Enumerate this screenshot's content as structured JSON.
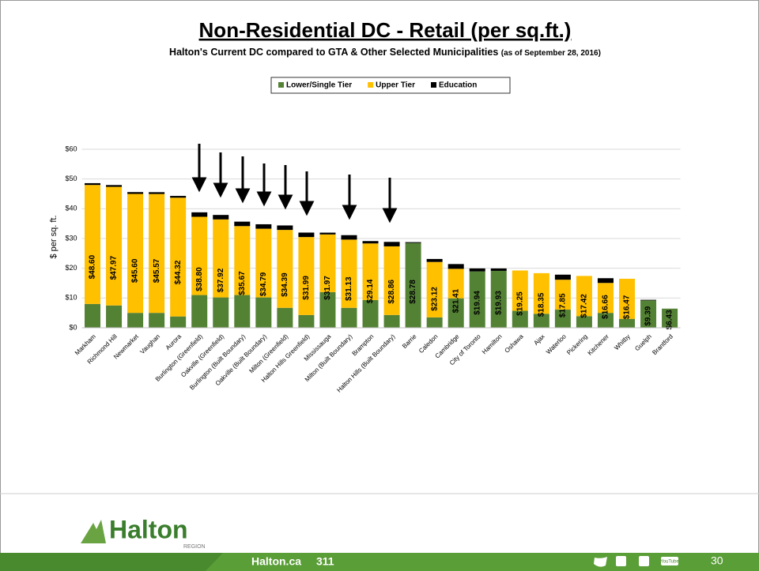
{
  "chart_data": {
    "type": "stacked_bar",
    "title": "Non-Residential DC - Retail (per sq.ft.)",
    "subtitle": "Halton's Current DC compared to GTA & Other Selected Municipalities",
    "subtitle_note": "(as of September 28, 2016)",
    "y_label": "$ per sq. ft.",
    "legend": "top",
    "categories": [
      "Markham",
      "Richmond Hill",
      "Newmarket",
      "Vaughan",
      "Aurora",
      "Burlington (Greenfield)",
      "Oakville (Greenfield)",
      "Burlington (Built Boundary)",
      "Oakville (Built Boundary)",
      "Milton (Greenfield)",
      "Halton Hills Greenfield)",
      "Mississauga",
      "Milton (Built Boundary)",
      "Brampton",
      "Halton Hills (Built Boundary)",
      "Barrie",
      "Caledon",
      "Cambridge",
      "City of Toronto",
      "Hamilton",
      "Oshawa",
      "Ajax",
      "Waterloo",
      "Pickering",
      "Kitchener",
      "Whitby",
      "Guelph",
      "Brantford"
    ],
    "series": [
      {
        "name": "Lower/Single Tier",
        "color": "#548235",
        "values": [
          8.0,
          7.5,
          5.0,
          5.0,
          3.8,
          11.0,
          10.2,
          11.0,
          10.2,
          6.7,
          4.3,
          12.0,
          6.7,
          9.3,
          4.3,
          28.48,
          3.5,
          9.9,
          18.94,
          19.13,
          5.7,
          4.7,
          6.1,
          3.9,
          5.0,
          3.0,
          9.19,
          6.43
        ]
      },
      {
        "name": "Upper Tier",
        "color": "#ffc000",
        "values": [
          40.0,
          39.87,
          40.0,
          39.97,
          39.92,
          26.3,
          26.22,
          23.17,
          23.09,
          26.19,
          26.19,
          19.37,
          22.93,
          19.04,
          23.06,
          0,
          18.62,
          9.91,
          0,
          0,
          13.55,
          13.65,
          10.05,
          13.52,
          10.06,
          13.47,
          0,
          0
        ]
      },
      {
        "name": "Education",
        "color": "#000000",
        "values": [
          0.6,
          0.6,
          0.6,
          0.6,
          0.6,
          1.5,
          1.5,
          1.5,
          1.5,
          1.5,
          1.5,
          0.6,
          1.5,
          0.8,
          1.5,
          0.3,
          1.0,
          1.6,
          1.0,
          0.8,
          0,
          0,
          1.7,
          0,
          1.6,
          0,
          0.2,
          0
        ]
      }
    ],
    "totals": {
      "values": [
        48.6,
        47.97,
        45.6,
        45.57,
        44.32,
        38.8,
        37.92,
        35.67,
        34.79,
        34.39,
        31.99,
        31.97,
        31.13,
        29.14,
        28.86,
        28.78,
        23.12,
        21.41,
        19.94,
        19.93,
        19.25,
        18.35,
        17.85,
        17.42,
        16.66,
        16.47,
        9.39,
        6.43
      ],
      "value_labels": [
        "$48.60",
        "$47.97",
        "$45.60",
        "$45.57",
        "$44.32",
        "$38.80",
        "$37.92",
        "$35.67",
        "$34.79",
        "$34.39",
        "$31.99",
        "$31.97",
        "$31.13",
        "$29.14",
        "$28.86",
        "$28.78",
        "$23.12",
        "$21.41",
        "$19.94",
        "$19.93",
        "$19.25",
        "$18.35",
        "$17.85",
        "$17.42",
        "$16.66",
        "$16.47",
        "$9.39",
        "$6.43"
      ]
    },
    "ylim": [
      0,
      60
    ],
    "yticks": [
      {
        "value": 0,
        "label": "$0"
      },
      {
        "value": 10,
        "label": "$10"
      },
      {
        "value": 20,
        "label": "$20"
      },
      {
        "value": 30,
        "label": "$30"
      },
      {
        "value": 40,
        "label": "$40"
      },
      {
        "value": 50,
        "label": "$50"
      },
      {
        "value": 60,
        "label": "$60"
      }
    ],
    "grid": true
  },
  "footer": {
    "logo": "Halton",
    "logo_sub": "REGION",
    "site": "Halton.ca",
    "phone": "311",
    "page": "30",
    "youtube": "YouTube"
  }
}
